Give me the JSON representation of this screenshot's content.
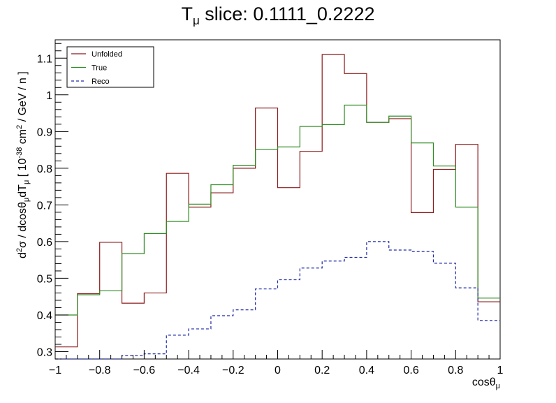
{
  "chart_data": {
    "type": "line",
    "title": {
      "main": "T",
      "sub": "μ",
      "rest": " slice: 0.1111_0.2222"
    },
    "xlabel": {
      "main": "cosθ",
      "sub": "μ"
    },
    "ylabel": {
      "p1": "d",
      "s1": "2",
      "p2": "σ / dcosθ",
      "s2": "μ",
      "p3": "dT",
      "s3": "μ",
      "p4": " [ 10",
      "s4": "-38",
      "p5": " cm",
      "s5": "2",
      "p6": " / GeV / n ]"
    },
    "xlim": [
      -1,
      1
    ],
    "ylim": [
      0.28,
      1.15
    ],
    "x_ticks": [
      "-1",
      "-0.8",
      "-0.6",
      "-0.4",
      "-0.2",
      "0",
      "0.2",
      "0.4",
      "0.6",
      "0.8",
      "1"
    ],
    "y_ticks": [
      "0.3",
      "0.4",
      "0.5",
      "0.6",
      "0.7",
      "0.8",
      "0.9",
      "1",
      "1.1"
    ],
    "bin_edges": [
      -1,
      -0.9,
      -0.8,
      -0.7,
      -0.6,
      -0.5,
      -0.4,
      -0.3,
      -0.2,
      -0.1,
      0,
      0.1,
      0.2,
      0.3,
      0.4,
      0.5,
      0.6,
      0.7,
      0.8,
      0.9,
      1
    ],
    "legend_position": "top-left",
    "series": [
      {
        "name": "Unfolded",
        "color": "#8b1a1a",
        "dash": "",
        "values": [
          0.313,
          0.458,
          0.598,
          0.432,
          0.46,
          0.786,
          0.694,
          0.733,
          0.8,
          0.964,
          0.747,
          0.846,
          1.11,
          1.058,
          0.925,
          0.935,
          0.679,
          0.797,
          0.865,
          0.436
        ]
      },
      {
        "name": "True",
        "color": "#2e8b22",
        "dash": "",
        "values": [
          0.4,
          0.455,
          0.466,
          0.567,
          0.622,
          0.655,
          0.702,
          0.755,
          0.808,
          0.851,
          0.858,
          0.914,
          0.919,
          0.972,
          0.925,
          0.942,
          0.869,
          0.806,
          0.694,
          0.446
        ]
      },
      {
        "name": "Reco",
        "color": "#1f2aa8",
        "dash": "4,3",
        "values": [
          0.278,
          0.278,
          0.278,
          0.289,
          0.294,
          0.345,
          0.362,
          0.398,
          0.414,
          0.471,
          0.496,
          0.528,
          0.547,
          0.557,
          0.6,
          0.577,
          0.573,
          0.541,
          0.474,
          0.385
        ]
      }
    ]
  }
}
